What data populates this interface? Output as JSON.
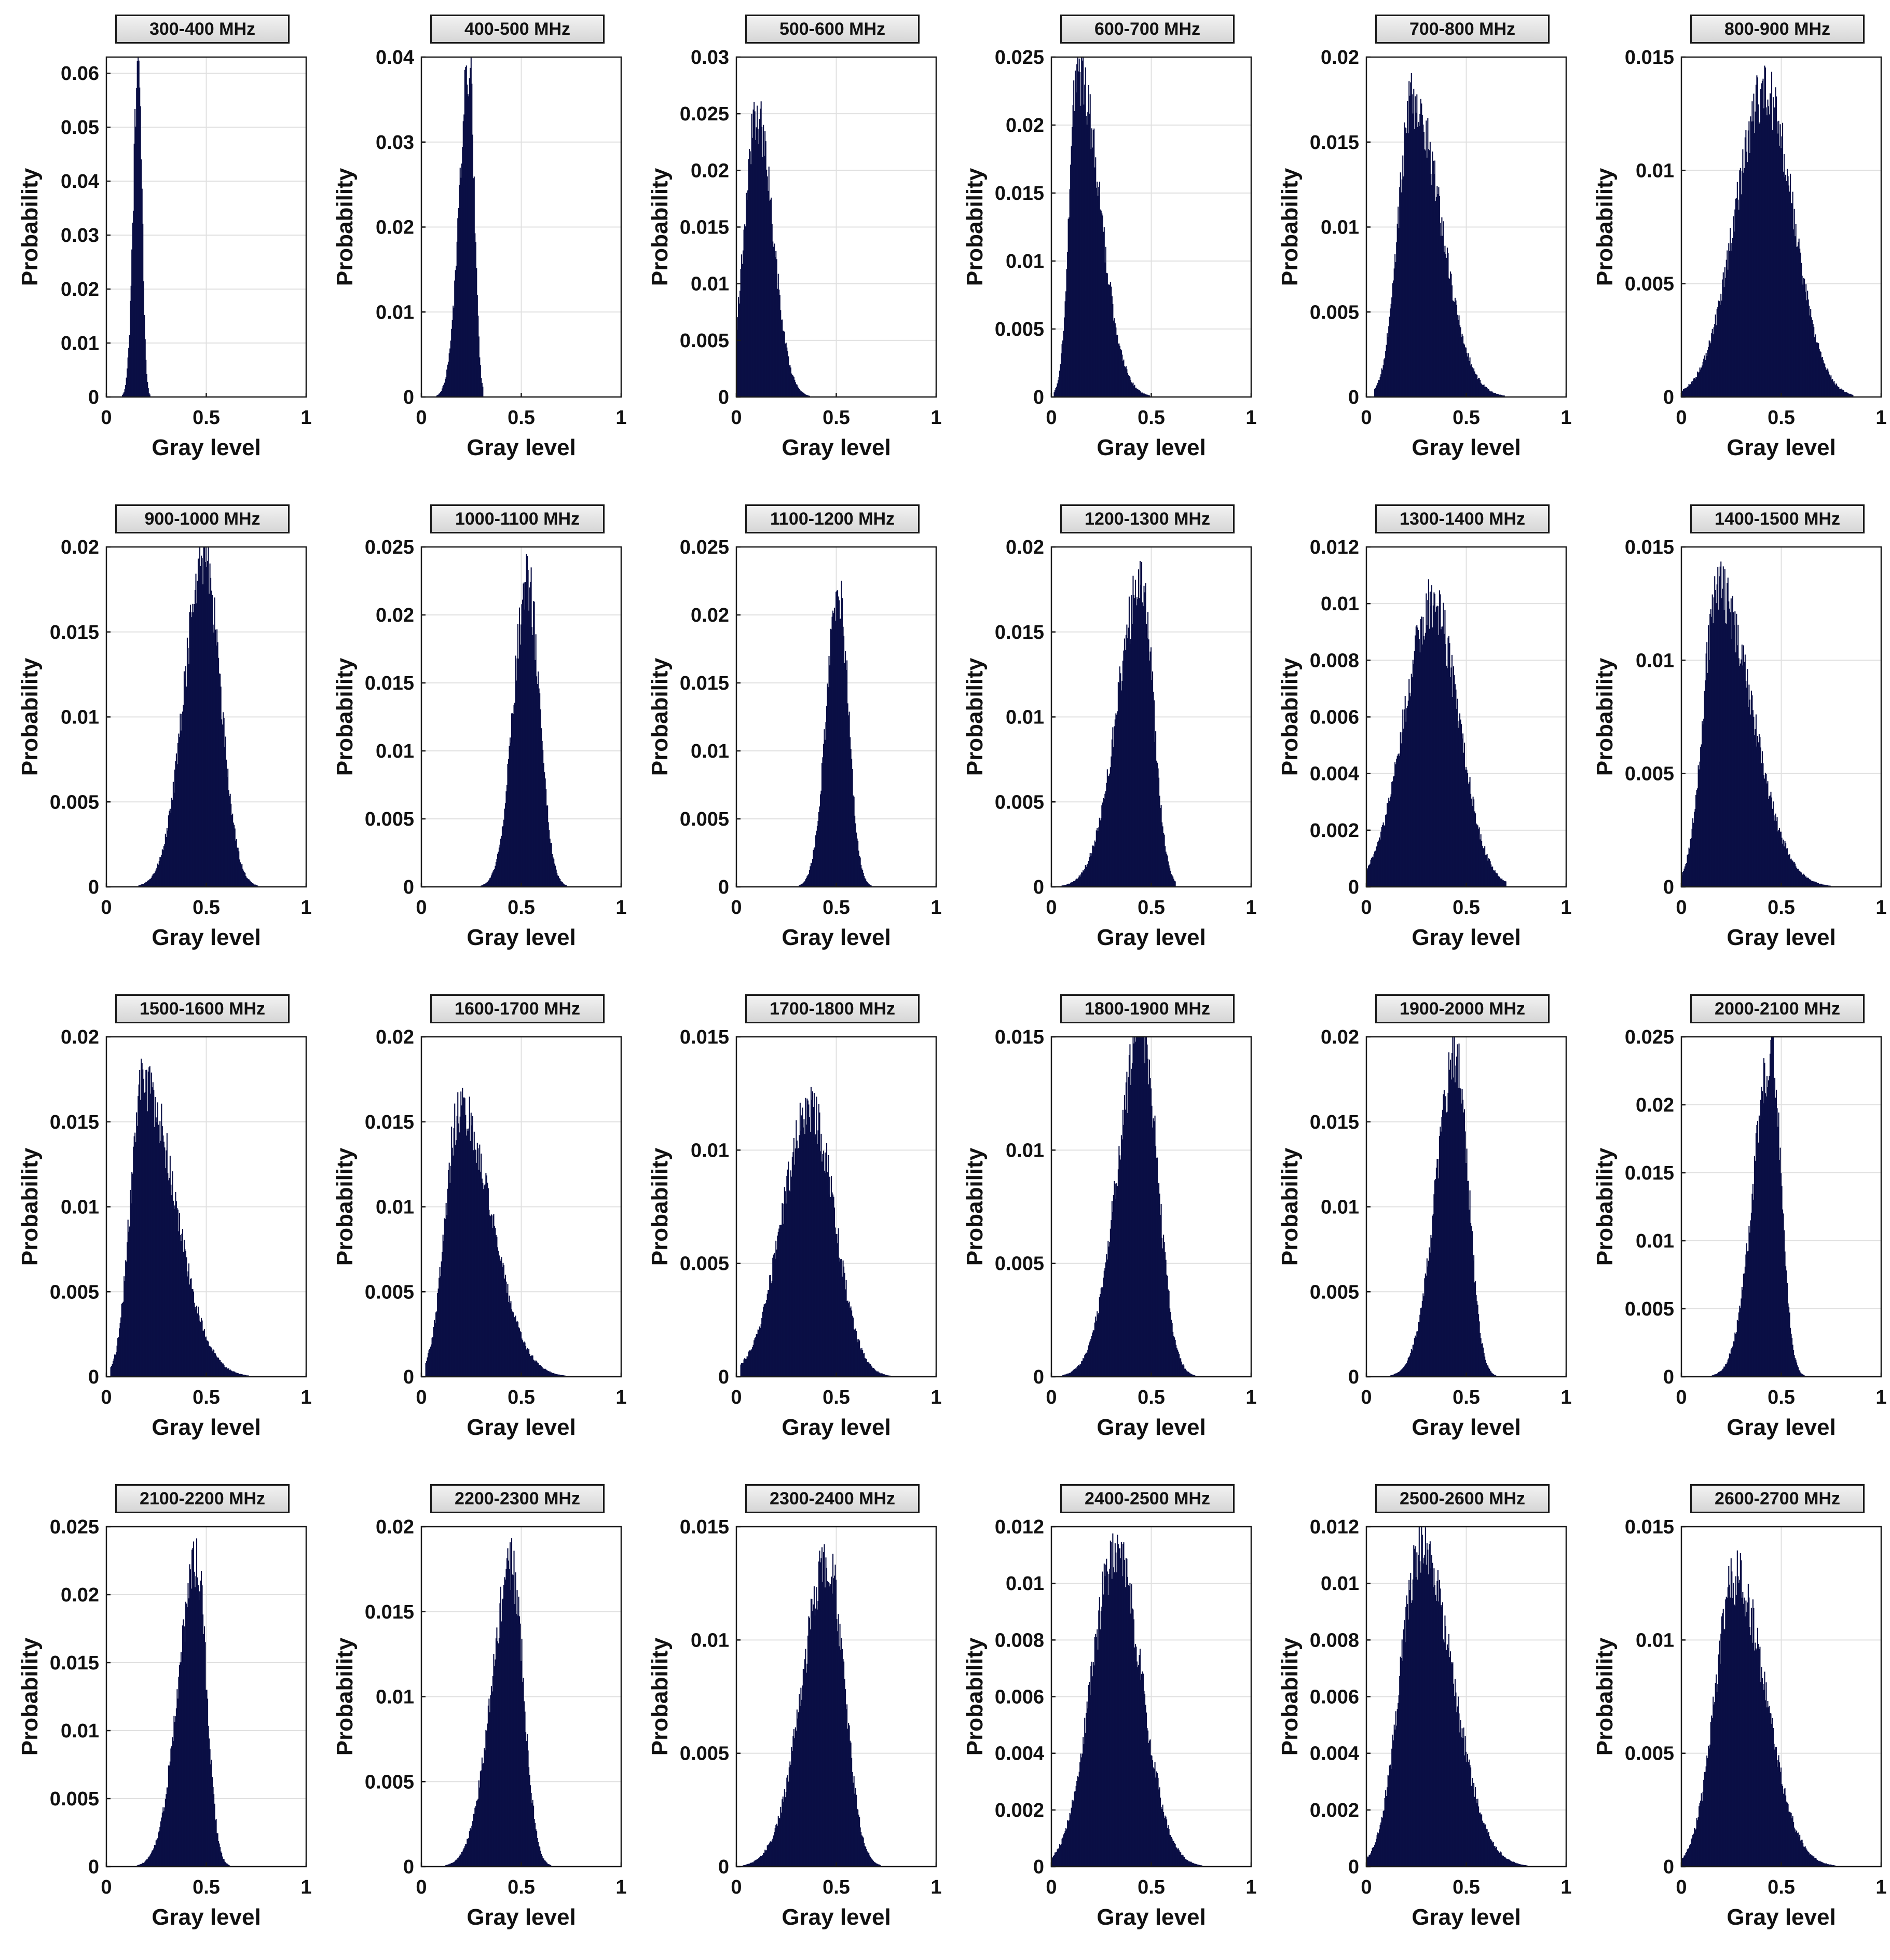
{
  "figure": {
    "colors": {
      "bars": "#0a0f45",
      "axis": "#1a1a1a",
      "grid": "#e0e0e0",
      "title_bg": "#e2e2e2"
    }
  },
  "chart_data": [
    {
      "type": "bar",
      "title": "300-400 MHz",
      "xlabel": "Gray level",
      "ylabel": "Probability",
      "xlim": [
        0,
        1
      ],
      "ylim": [
        0,
        0.063
      ],
      "xticks": [
        "0",
        "0.5",
        "1"
      ],
      "yticks": [
        "0",
        "0.01",
        "0.02",
        "0.03",
        "0.04",
        "0.05",
        "0.06"
      ],
      "distribution": {
        "peak_x": 0.16,
        "peak_y": 0.062,
        "left_width": 0.025,
        "right_width": 0.018,
        "min_x": 0.06,
        "max_x": 0.22
      }
    },
    {
      "type": "bar",
      "title": "400-500 MHz",
      "xlabel": "Gray level",
      "ylabel": "Probability",
      "xlim": [
        0,
        1
      ],
      "ylim": [
        0,
        0.04
      ],
      "xticks": [
        "0",
        "0.5",
        "1"
      ],
      "yticks": [
        "0",
        "0.01",
        "0.02",
        "0.03",
        "0.04"
      ],
      "distribution": {
        "peak_x": 0.24,
        "peak_y": 0.039,
        "left_width": 0.05,
        "right_width": 0.025,
        "min_x": 0.02,
        "max_x": 0.31
      }
    },
    {
      "type": "bar",
      "title": "500-600 MHz",
      "xlabel": "Gray level",
      "ylabel": "Probability",
      "xlim": [
        0,
        1
      ],
      "ylim": [
        0,
        0.03
      ],
      "xticks": [
        "0",
        "0.5",
        "1"
      ],
      "yticks": [
        "0",
        "0.005",
        "0.01",
        "0.015",
        "0.02",
        "0.025",
        "0.03"
      ],
      "distribution": {
        "peak_x": 0.1,
        "peak_y": 0.025,
        "left_width": 0.06,
        "right_width": 0.08,
        "min_x": 0.0,
        "max_x": 0.38
      }
    },
    {
      "type": "bar",
      "title": "600-700 MHz",
      "xlabel": "Gray level",
      "ylabel": "Probability",
      "xlim": [
        0,
        1
      ],
      "ylim": [
        0,
        0.025
      ],
      "xticks": [
        "0",
        "0.5",
        "1"
      ],
      "yticks": [
        "0",
        "0.005",
        "0.01",
        "0.015",
        "0.02",
        "0.025"
      ],
      "distribution": {
        "peak_x": 0.13,
        "peak_y": 0.024,
        "left_width": 0.04,
        "right_width": 0.11,
        "min_x": 0.01,
        "max_x": 0.55
      }
    },
    {
      "type": "bar",
      "title": "700-800 MHz",
      "xlabel": "Gray level",
      "ylabel": "Probability",
      "xlim": [
        0,
        1
      ],
      "ylim": [
        0,
        0.02
      ],
      "xticks": [
        "0",
        "0.5",
        "1"
      ],
      "yticks": [
        "0",
        "0.005",
        "0.01",
        "0.015",
        "0.02"
      ],
      "distribution": {
        "peak_x": 0.23,
        "peak_y": 0.0175,
        "left_width": 0.07,
        "right_width": 0.14,
        "min_x": 0.04,
        "max_x": 0.75
      }
    },
    {
      "type": "bar",
      "title": "800-900 MHz",
      "xlabel": "Gray level",
      "ylabel": "Probability",
      "xlim": [
        0,
        1
      ],
      "ylim": [
        0,
        0.015
      ],
      "xticks": [
        "0",
        "0.5",
        "1"
      ],
      "yticks": [
        "0",
        "0.005",
        "0.01",
        "0.015"
      ],
      "distribution": {
        "peak_x": 0.42,
        "peak_y": 0.0135,
        "left_width": 0.15,
        "right_width": 0.14,
        "min_x": 0.0,
        "max_x": 0.86
      }
    },
    {
      "type": "bar",
      "title": "900-1000 MHz",
      "xlabel": "Gray level",
      "ylabel": "Probability",
      "xlim": [
        0,
        1
      ],
      "ylim": [
        0,
        0.02
      ],
      "xticks": [
        "0",
        "0.5",
        "1"
      ],
      "yticks": [
        "0",
        "0.005",
        "0.01",
        "0.015",
        "0.02"
      ],
      "distribution": {
        "peak_x": 0.49,
        "peak_y": 0.0195,
        "left_width": 0.1,
        "right_width": 0.08,
        "min_x": 0.02,
        "max_x": 0.8
      }
    },
    {
      "type": "bar",
      "title": "1000-1100 MHz",
      "xlabel": "Gray level",
      "ylabel": "Probability",
      "xlim": [
        0,
        1
      ],
      "ylim": [
        0,
        0.025
      ],
      "xticks": [
        "0",
        "0.5",
        "1"
      ],
      "yticks": [
        "0",
        "0.005",
        "0.01",
        "0.015",
        "0.02",
        "0.025"
      ],
      "distribution": {
        "peak_x": 0.53,
        "peak_y": 0.0225,
        "left_width": 0.07,
        "right_width": 0.06,
        "min_x": 0.02,
        "max_x": 0.8
      }
    },
    {
      "type": "bar",
      "title": "1100-1200 MHz",
      "xlabel": "Gray level",
      "ylabel": "Probability",
      "xlim": [
        0,
        1
      ],
      "ylim": [
        0,
        0.025
      ],
      "xticks": [
        "0",
        "0.5",
        "1"
      ],
      "yticks": [
        "0",
        "0.005",
        "0.01",
        "0.015",
        "0.02",
        "0.025"
      ],
      "distribution": {
        "peak_x": 0.51,
        "peak_y": 0.022,
        "left_width": 0.06,
        "right_width": 0.05,
        "min_x": 0.0,
        "max_x": 0.7
      }
    },
    {
      "type": "bar",
      "title": "1200-1300 MHz",
      "xlabel": "Gray level",
      "ylabel": "Probability",
      "xlim": [
        0,
        1
      ],
      "ylim": [
        0,
        0.02
      ],
      "xticks": [
        "0",
        "0.5",
        "1"
      ],
      "yticks": [
        "0",
        "0.005",
        "0.01",
        "0.015",
        "0.02"
      ],
      "distribution": {
        "peak_x": 0.45,
        "peak_y": 0.0178,
        "left_width": 0.12,
        "right_width": 0.06,
        "min_x": 0.0,
        "max_x": 0.62
      }
    },
    {
      "type": "bar",
      "title": "1300-1400 MHz",
      "xlabel": "Gray level",
      "ylabel": "Probability",
      "xlim": [
        0,
        1
      ],
      "ylim": [
        0,
        0.012
      ],
      "xticks": [
        "0",
        "0.5",
        "1"
      ],
      "yticks": [
        "0",
        "0.002",
        "0.004",
        "0.006",
        "0.008",
        "0.01",
        "0.012"
      ],
      "distribution": {
        "peak_x": 0.33,
        "peak_y": 0.01,
        "left_width": 0.14,
        "right_width": 0.13,
        "min_x": 0.0,
        "max_x": 0.7
      }
    },
    {
      "type": "bar",
      "title": "1400-1500 MHz",
      "xlabel": "Gray level",
      "ylabel": "Probability",
      "xlim": [
        0,
        1
      ],
      "ylim": [
        0,
        0.015
      ],
      "xticks": [
        "0",
        "0.5",
        "1"
      ],
      "yticks": [
        "0",
        "0.005",
        "0.01",
        "0.015"
      ],
      "distribution": {
        "peak_x": 0.18,
        "peak_y": 0.0132,
        "left_width": 0.07,
        "right_width": 0.17,
        "min_x": 0.0,
        "max_x": 0.85
      }
    },
    {
      "type": "bar",
      "title": "1500-1600 MHz",
      "xlabel": "Gray level",
      "ylabel": "Probability",
      "xlim": [
        0,
        1
      ],
      "ylim": [
        0,
        0.02
      ],
      "xticks": [
        "0",
        "0.5",
        "1"
      ],
      "yticks": [
        "0",
        "0.005",
        "0.01",
        "0.015",
        "0.02"
      ],
      "distribution": {
        "peak_x": 0.18,
        "peak_y": 0.0175,
        "left_width": 0.06,
        "right_width": 0.16,
        "min_x": 0.02,
        "max_x": 0.78
      }
    },
    {
      "type": "bar",
      "title": "1600-1700 MHz",
      "xlabel": "Gray level",
      "ylabel": "Probability",
      "xlim": [
        0,
        1
      ],
      "ylim": [
        0,
        0.02
      ],
      "xticks": [
        "0",
        "0.5",
        "1"
      ],
      "yticks": [
        "0",
        "0.005",
        "0.01",
        "0.015",
        "0.02"
      ],
      "distribution": {
        "peak_x": 0.19,
        "peak_y": 0.0158,
        "left_width": 0.07,
        "right_width": 0.16,
        "min_x": 0.02,
        "max_x": 0.78
      }
    },
    {
      "type": "bar",
      "title": "1700-1800 MHz",
      "xlabel": "Gray level",
      "ylabel": "Probability",
      "xlim": [
        0,
        1
      ],
      "ylim": [
        0,
        0.015
      ],
      "xticks": [
        "0",
        "0.5",
        "1"
      ],
      "yticks": [
        "0",
        "0.005",
        "0.01",
        "0.015"
      ],
      "distribution": {
        "peak_x": 0.37,
        "peak_y": 0.0118,
        "left_width": 0.14,
        "right_width": 0.12,
        "min_x": 0.02,
        "max_x": 0.8
      }
    },
    {
      "type": "bar",
      "title": "1800-1900 MHz",
      "xlabel": "Gray level",
      "ylabel": "Probability",
      "xlim": [
        0,
        1
      ],
      "ylim": [
        0,
        0.015
      ],
      "xticks": [
        "0",
        "0.5",
        "1"
      ],
      "yticks": [
        "0",
        "0.005",
        "0.01",
        "0.015"
      ],
      "distribution": {
        "peak_x": 0.45,
        "peak_y": 0.0152,
        "left_width": 0.12,
        "right_width": 0.08,
        "min_x": 0.0,
        "max_x": 0.74
      }
    },
    {
      "type": "bar",
      "title": "1900-2000 MHz",
      "xlabel": "Gray level",
      "ylabel": "Probability",
      "xlim": [
        0,
        1
      ],
      "ylim": [
        0,
        0.02
      ],
      "xticks": [
        "0",
        "0.5",
        "1"
      ],
      "yticks": [
        "0",
        "0.005",
        "0.01",
        "0.015",
        "0.02"
      ],
      "distribution": {
        "peak_x": 0.45,
        "peak_y": 0.019,
        "left_width": 0.1,
        "right_width": 0.06,
        "min_x": 0.02,
        "max_x": 0.66
      }
    },
    {
      "type": "bar",
      "title": "2000-2100 MHz",
      "xlabel": "Gray level",
      "ylabel": "Probability",
      "xlim": [
        0,
        1
      ],
      "ylim": [
        0,
        0.025
      ],
      "xticks": [
        "0",
        "0.5",
        "1"
      ],
      "yticks": [
        "0",
        "0.005",
        "0.01",
        "0.015",
        "0.02",
        "0.025"
      ],
      "distribution": {
        "peak_x": 0.45,
        "peak_y": 0.0235,
        "left_width": 0.09,
        "right_width": 0.05,
        "min_x": 0.06,
        "max_x": 0.62
      }
    },
    {
      "type": "bar",
      "title": "2100-2200 MHz",
      "xlabel": "Gray level",
      "ylabel": "Probability",
      "xlim": [
        0,
        1
      ],
      "ylim": [
        0,
        0.025
      ],
      "xticks": [
        "0",
        "0.5",
        "1"
      ],
      "yticks": [
        "0",
        "0.005",
        "0.01",
        "0.015",
        "0.02",
        "0.025"
      ],
      "distribution": {
        "peak_x": 0.45,
        "peak_y": 0.0225,
        "left_width": 0.09,
        "right_width": 0.05,
        "min_x": 0.06,
        "max_x": 0.62
      }
    },
    {
      "type": "bar",
      "title": "2200-2300 MHz",
      "xlabel": "Gray level",
      "ylabel": "Probability",
      "xlim": [
        0,
        1
      ],
      "ylim": [
        0,
        0.02
      ],
      "xticks": [
        "0",
        "0.5",
        "1"
      ],
      "yticks": [
        "0",
        "0.005",
        "0.01",
        "0.015",
        "0.02"
      ],
      "distribution": {
        "peak_x": 0.45,
        "peak_y": 0.0178,
        "left_width": 0.1,
        "right_width": 0.06,
        "min_x": 0.04,
        "max_x": 0.66
      }
    },
    {
      "type": "bar",
      "title": "2300-2400 MHz",
      "xlabel": "Gray level",
      "ylabel": "Probability",
      "xlim": [
        0,
        1
      ],
      "ylim": [
        0,
        0.015
      ],
      "xticks": [
        "0",
        "0.5",
        "1"
      ],
      "yticks": [
        "0",
        "0.005",
        "0.01",
        "0.015"
      ],
      "distribution": {
        "peak_x": 0.46,
        "peak_y": 0.0135,
        "left_width": 0.13,
        "right_width": 0.08,
        "min_x": 0.02,
        "max_x": 0.78
      }
    },
    {
      "type": "bar",
      "title": "2400-2500 MHz",
      "xlabel": "Gray level",
      "ylabel": "Probability",
      "xlim": [
        0,
        1
      ],
      "ylim": [
        0,
        0.012
      ],
      "xticks": [
        "0",
        "0.5",
        "1"
      ],
      "yticks": [
        "0",
        "0.002",
        "0.004",
        "0.006",
        "0.008",
        "0.01",
        "0.012"
      ],
      "distribution": {
        "peak_x": 0.32,
        "peak_y": 0.011,
        "left_width": 0.12,
        "right_width": 0.13,
        "min_x": 0.0,
        "max_x": 0.85
      }
    },
    {
      "type": "bar",
      "title": "2500-2600 MHz",
      "xlabel": "Gray level",
      "ylabel": "Probability",
      "xlim": [
        0,
        1
      ],
      "ylim": [
        0,
        0.012
      ],
      "xticks": [
        "0",
        "0.5",
        "1"
      ],
      "yticks": [
        "0",
        "0.002",
        "0.004",
        "0.006",
        "0.008",
        "0.01",
        "0.012"
      ],
      "distribution": {
        "peak_x": 0.27,
        "peak_y": 0.0112,
        "left_width": 0.1,
        "right_width": 0.16,
        "min_x": 0.0,
        "max_x": 0.95
      }
    },
    {
      "type": "bar",
      "title": "2600-2700 MHz",
      "xlabel": "Gray level",
      "ylabel": "Probability",
      "xlim": [
        0,
        1
      ],
      "ylim": [
        0,
        0.015
      ],
      "xticks": [
        "0",
        "0.5",
        "1"
      ],
      "yticks": [
        "0",
        "0.005",
        "0.01",
        "0.015"
      ],
      "distribution": {
        "peak_x": 0.27,
        "peak_y": 0.0128,
        "left_width": 0.1,
        "right_width": 0.15,
        "min_x": 0.0,
        "max_x": 0.85
      }
    }
  ]
}
